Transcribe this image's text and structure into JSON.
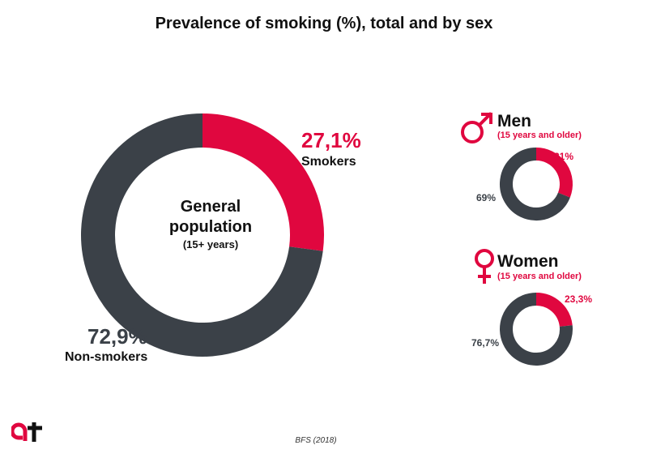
{
  "title": "Prevalence of smoking (%), total and by sex",
  "source": "BFS (2018)",
  "colors": {
    "smokers": "#E0073F",
    "non_smokers": "#3B4148",
    "text": "#111111"
  },
  "chart_data": [
    {
      "type": "pie",
      "variant": "donut",
      "center_label": {
        "line1": "General",
        "line2": "population",
        "line3": "(15+ years)"
      },
      "slices": [
        {
          "label": "Smokers",
          "value": 27.1,
          "display": "27,1%"
        },
        {
          "label": "Non-smokers",
          "value": 72.9,
          "display": "72,9%"
        }
      ]
    },
    {
      "type": "pie",
      "variant": "donut",
      "title": "Men",
      "subtitle": "(15 years and older)",
      "icon": "male-symbol-icon",
      "slices": [
        {
          "value": 31,
          "display": "31%"
        },
        {
          "value": 69,
          "display": "69%"
        }
      ]
    },
    {
      "type": "pie",
      "variant": "donut",
      "title": "Women",
      "subtitle": "(15 years and older)",
      "icon": "female-symbol-icon",
      "slices": [
        {
          "value": 23.3,
          "display": "23,3%"
        },
        {
          "value": 76.7,
          "display": "76,7%"
        }
      ]
    }
  ]
}
